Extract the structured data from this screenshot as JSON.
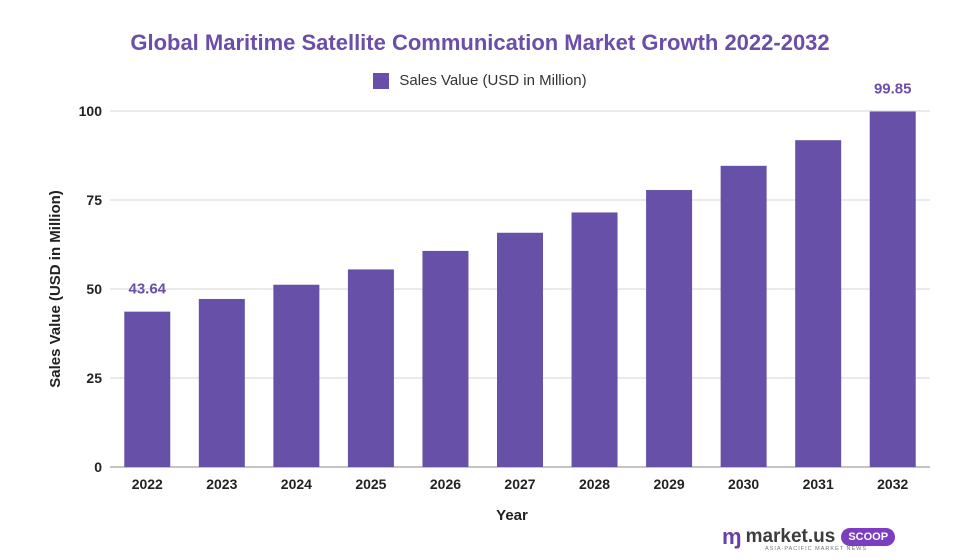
{
  "chart_data": {
    "type": "bar",
    "title": "Global Maritime Satellite Communication Market Growth 2022-2032",
    "xlabel": "Year",
    "ylabel": "Sales Value (USD in Million)",
    "legend": "top-center",
    "categories": [
      "2022",
      "2023",
      "2024",
      "2025",
      "2026",
      "2027",
      "2028",
      "2029",
      "2030",
      "2031",
      "2032"
    ],
    "series": [
      {
        "name": "Sales Value (USD in Million)",
        "values": [
          43.64,
          47.2,
          51.2,
          55.5,
          60.7,
          65.8,
          71.5,
          77.8,
          84.6,
          91.8,
          99.85
        ],
        "color": "#6650a8"
      }
    ],
    "data_labels": [
      {
        "category": "2022",
        "text": "43.64"
      },
      {
        "category": "2032",
        "text": "99.85"
      }
    ],
    "ylim": [
      0,
      100
    ],
    "yticks": [
      "0",
      "25",
      "50",
      "75",
      "100"
    ],
    "grid": true
  },
  "brand": {
    "mark": "ɱ",
    "name": "market.us",
    "badge": "SCOOP",
    "tagline": "ASIA-PACIFIC MARKET NEWS"
  }
}
